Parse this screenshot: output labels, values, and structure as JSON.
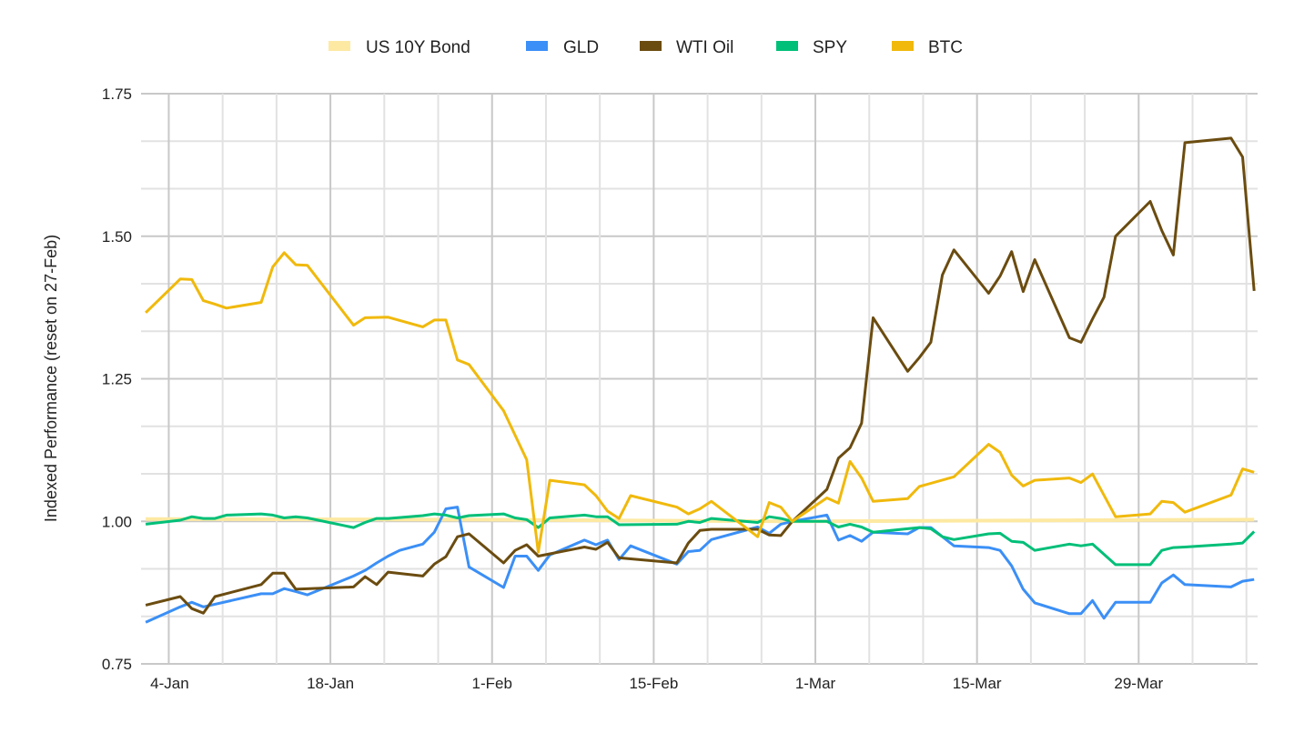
{
  "chart_data": {
    "type": "line",
    "title": "",
    "xlabel": "",
    "ylabel": "Indexed Performance (reset on 27-Feb)",
    "x_units": "day of year (0 = 1-Jan)",
    "xlim": [
      0.6,
      97.3
    ],
    "ylim": [
      0.75,
      1.75
    ],
    "grid": true,
    "legend_position": "top-center",
    "y_ticks": [
      {
        "value": 1.75,
        "label": "1.75"
      },
      {
        "value": 1.5,
        "label": "1.50"
      },
      {
        "value": 1.25,
        "label": "1.25"
      },
      {
        "value": 1.0,
        "label": "1.00"
      },
      {
        "value": 0.75,
        "label": "0.75"
      }
    ],
    "x_ticks": [
      {
        "value": 3,
        "label": "4-Jan"
      },
      {
        "value": 17,
        "label": "18-Jan"
      },
      {
        "value": 31,
        "label": "1-Feb"
      },
      {
        "value": 45,
        "label": "15-Feb"
      },
      {
        "value": 59,
        "label": "1-Mar"
      },
      {
        "value": 73,
        "label": "15-Mar"
      },
      {
        "value": 87,
        "label": "29-Mar"
      }
    ],
    "series": [
      {
        "name": "US 10Y Bond",
        "color": "#fde9a2",
        "x": [
          1,
          30,
          57,
          97
        ],
        "y": [
          1.004,
          1.003,
          1.0,
          1.003
        ]
      },
      {
        "name": "GLD",
        "color": "#3b8ff6",
        "x": [
          1,
          4,
          5,
          6,
          11,
          12,
          13,
          14,
          15,
          19,
          20,
          21,
          22,
          23,
          25,
          26,
          27,
          28,
          29,
          32,
          33,
          34,
          35,
          36,
          39,
          40,
          41,
          42,
          43,
          47,
          48,
          49,
          50,
          54,
          55,
          56,
          57,
          60,
          61,
          62,
          63,
          64,
          67,
          68,
          69,
          71,
          74,
          75,
          76,
          77,
          78,
          81,
          82,
          83,
          84,
          85,
          88,
          89,
          90,
          91,
          95,
          96,
          97
        ],
        "y": [
          0.823,
          0.85,
          0.858,
          0.85,
          0.873,
          0.873,
          0.882,
          0.877,
          0.871,
          0.904,
          0.914,
          0.927,
          0.939,
          0.949,
          0.96,
          0.981,
          1.022,
          1.025,
          0.92,
          0.884,
          0.939,
          0.939,
          0.914,
          0.941,
          0.967,
          0.959,
          0.967,
          0.933,
          0.957,
          0.925,
          0.947,
          0.949,
          0.968,
          0.99,
          0.979,
          0.995,
          1.0,
          1.011,
          0.967,
          0.975,
          0.965,
          0.981,
          0.978,
          0.989,
          0.989,
          0.957,
          0.954,
          0.949,
          0.922,
          0.881,
          0.857,
          0.838,
          0.838,
          0.861,
          0.83,
          0.858,
          0.858,
          0.892,
          0.906,
          0.889,
          0.885,
          0.895,
          0.898
        ]
      },
      {
        "name": "WTI Oil",
        "color": "#6b4c10",
        "x": [
          1,
          4,
          5,
          6,
          7,
          11,
          12,
          13,
          14,
          19,
          20,
          21,
          22,
          25,
          26,
          27,
          28,
          29,
          32,
          33,
          34,
          35,
          39,
          40,
          41,
          42,
          47,
          48,
          49,
          50,
          54,
          55,
          56,
          57,
          60,
          61,
          62,
          63,
          64,
          67,
          68,
          69,
          70,
          71,
          74,
          75,
          76,
          77,
          78,
          81,
          82,
          83,
          84,
          85,
          88,
          89,
          90,
          91,
          95,
          96,
          97
        ],
        "y": [
          0.853,
          0.868,
          0.847,
          0.839,
          0.868,
          0.889,
          0.909,
          0.909,
          0.881,
          0.885,
          0.903,
          0.889,
          0.911,
          0.904,
          0.925,
          0.938,
          0.973,
          0.978,
          0.927,
          0.949,
          0.959,
          0.939,
          0.955,
          0.951,
          0.963,
          0.936,
          0.927,
          0.962,
          0.984,
          0.986,
          0.986,
          0.976,
          0.975,
          1.0,
          1.056,
          1.111,
          1.129,
          1.172,
          1.357,
          1.263,
          1.287,
          1.314,
          1.432,
          1.476,
          1.4,
          1.43,
          1.473,
          1.403,
          1.459,
          1.322,
          1.314,
          1.355,
          1.393,
          1.5,
          1.561,
          1.51,
          1.467,
          1.664,
          1.672,
          1.639,
          1.404
        ]
      },
      {
        "name": "SPY",
        "color": "#00bf78",
        "x": [
          1,
          4,
          5,
          6,
          7,
          8,
          11,
          12,
          13,
          14,
          15,
          19,
          20,
          21,
          22,
          25,
          26,
          27,
          28,
          29,
          32,
          33,
          34,
          35,
          36,
          39,
          40,
          41,
          42,
          47,
          48,
          49,
          50,
          54,
          55,
          56,
          57,
          60,
          61,
          62,
          63,
          64,
          67,
          68,
          69,
          70,
          71,
          74,
          75,
          76,
          77,
          78,
          81,
          82,
          83,
          85,
          88,
          89,
          90,
          91,
          95,
          96,
          97
        ],
        "y": [
          0.995,
          1.002,
          1.008,
          1.005,
          1.005,
          1.011,
          1.013,
          1.011,
          1.006,
          1.008,
          1.006,
          0.989,
          0.998,
          1.005,
          1.005,
          1.01,
          1.013,
          1.011,
          1.006,
          1.01,
          1.013,
          1.006,
          1.003,
          0.989,
          1.006,
          1.011,
          1.008,
          1.008,
          0.994,
          0.995,
          1.0,
          0.998,
          1.005,
          0.998,
          1.008,
          1.005,
          1.0,
          1.0,
          0.99,
          0.995,
          0.99,
          0.981,
          0.987,
          0.989,
          0.987,
          0.973,
          0.968,
          0.978,
          0.979,
          0.965,
          0.963,
          0.949,
          0.96,
          0.957,
          0.96,
          0.924,
          0.924,
          0.949,
          0.954,
          0.955,
          0.96,
          0.962,
          0.982
        ]
      },
      {
        "name": "BTC",
        "color": "#f0b90c",
        "x": [
          1,
          4,
          5,
          6,
          7,
          8,
          11,
          12,
          13,
          14,
          15,
          19,
          20,
          22,
          25,
          26,
          27,
          28,
          29,
          32,
          33,
          34,
          35,
          36,
          39,
          40,
          41,
          42,
          43,
          47,
          48,
          49,
          50,
          54,
          55,
          56,
          57,
          60,
          61,
          62,
          63,
          64,
          67,
          68,
          71,
          74,
          75,
          76,
          77,
          78,
          81,
          82,
          83,
          85,
          88,
          89,
          90,
          91,
          95,
          96,
          97
        ],
        "y": [
          1.366,
          1.425,
          1.424,
          1.387,
          1.381,
          1.374,
          1.384,
          1.446,
          1.471,
          1.45,
          1.449,
          1.344,
          1.357,
          1.358,
          1.341,
          1.353,
          1.353,
          1.283,
          1.275,
          1.194,
          1.151,
          1.108,
          0.946,
          1.072,
          1.064,
          1.045,
          1.018,
          1.005,
          1.045,
          1.025,
          1.013,
          1.022,
          1.035,
          0.973,
          1.033,
          1.025,
          1.0,
          1.041,
          1.032,
          1.105,
          1.076,
          1.035,
          1.04,
          1.061,
          1.078,
          1.135,
          1.121,
          1.081,
          1.062,
          1.072,
          1.076,
          1.068,
          1.083,
          1.008,
          1.013,
          1.035,
          1.033,
          1.016,
          1.046,
          1.092,
          1.086
        ]
      }
    ]
  }
}
